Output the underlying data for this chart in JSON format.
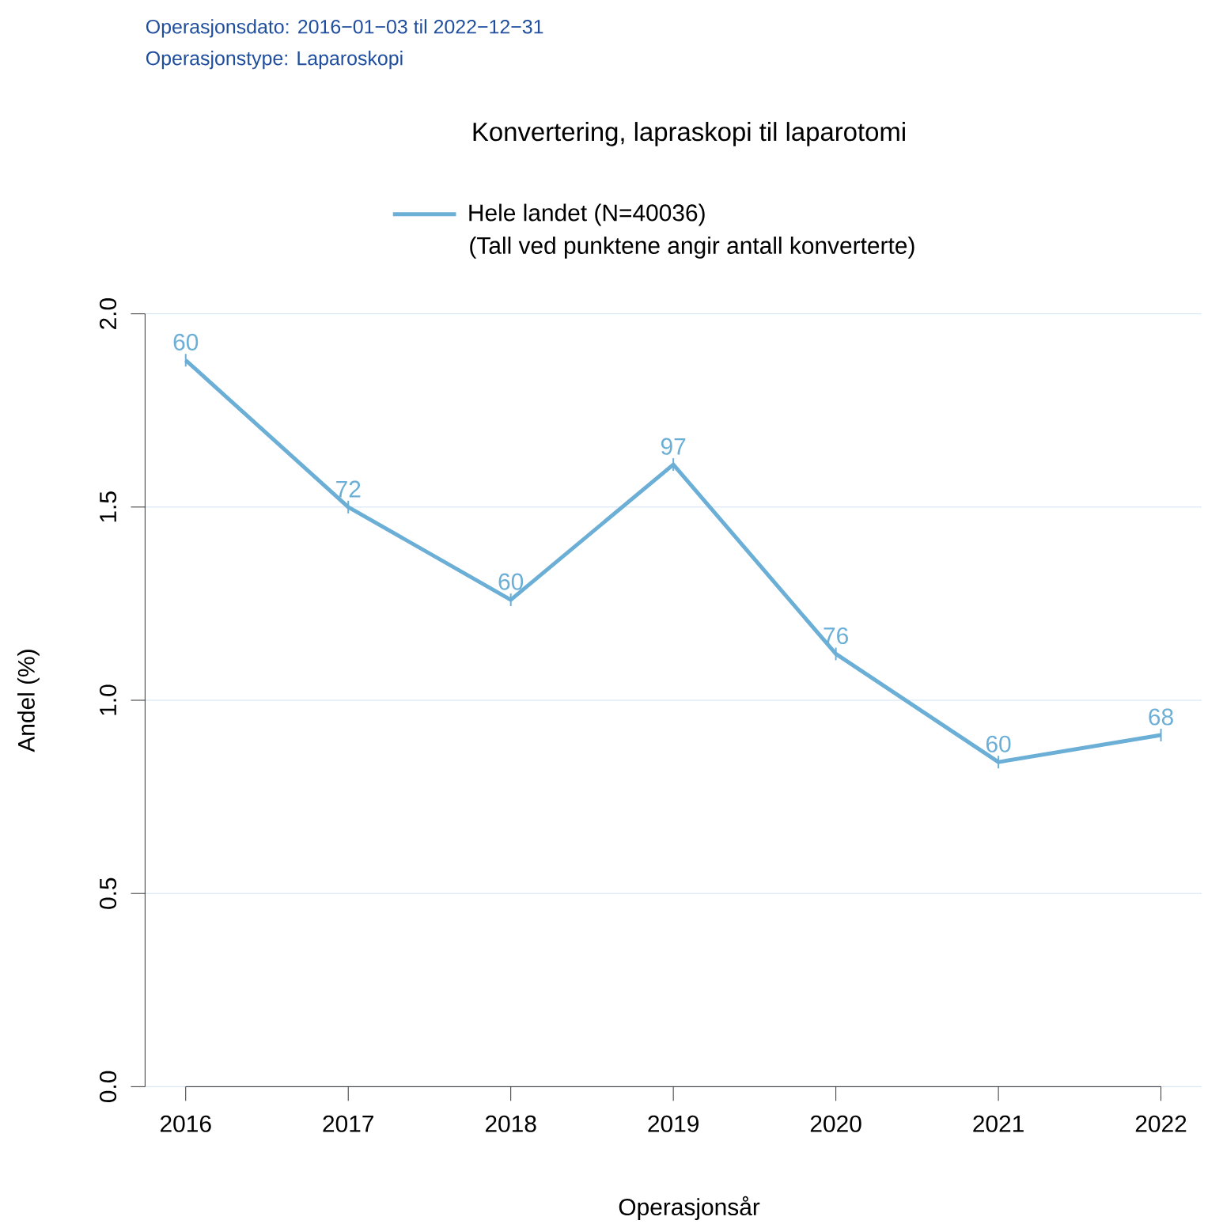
{
  "chart_data": {
    "type": "line",
    "title": "Konvertering, lapraskopi til laparotomi",
    "xlabel": "Operasjonsår",
    "ylabel": "Andel (%)",
    "annotations": [
      "Operasjonsdato: 2016−01−03 til 2022−12−31",
      "Operasjonstype: Laparoskopi",
      "(Tall ved punktene angir antall konverterte)",
      {
        "text": "60",
        "x": 2016,
        "y": 1.88
      },
      {
        "text": "72",
        "x": 2017,
        "y": 1.5
      },
      {
        "text": "60",
        "x": 2018,
        "y": 1.26
      },
      {
        "text": "97",
        "x": 2019,
        "y": 1.61
      },
      {
        "text": "76",
        "x": 2020,
        "y": 1.12
      },
      {
        "text": "60",
        "x": 2021,
        "y": 0.84
      },
      {
        "text": "68",
        "x": 2022,
        "y": 0.91
      }
    ],
    "x": [
      2016,
      2017,
      2018,
      2019,
      2020,
      2021,
      2022
    ],
    "series": [
      {
        "name": "Hele landet (N=40036)",
        "color": "#6baed6",
        "values": [
          1.88,
          1.5,
          1.26,
          1.61,
          1.12,
          0.84,
          0.91
        ]
      }
    ],
    "xlim": [
      2015.75,
      2022.25
    ],
    "xticks": [
      2016,
      2017,
      2018,
      2019,
      2020,
      2021,
      2022
    ],
    "ylim": [
      0,
      2
    ],
    "yticks": [
      {
        "value": 0,
        "label": "0.0"
      },
      {
        "value": 0.5,
        "label": "0.5"
      },
      {
        "value": 1,
        "label": "1.0"
      },
      {
        "value": 1.5,
        "label": "1.5"
      },
      {
        "value": 2,
        "label": "2.0"
      }
    ],
    "grid": "y",
    "legend": "top",
    "line_style": "solid"
  }
}
